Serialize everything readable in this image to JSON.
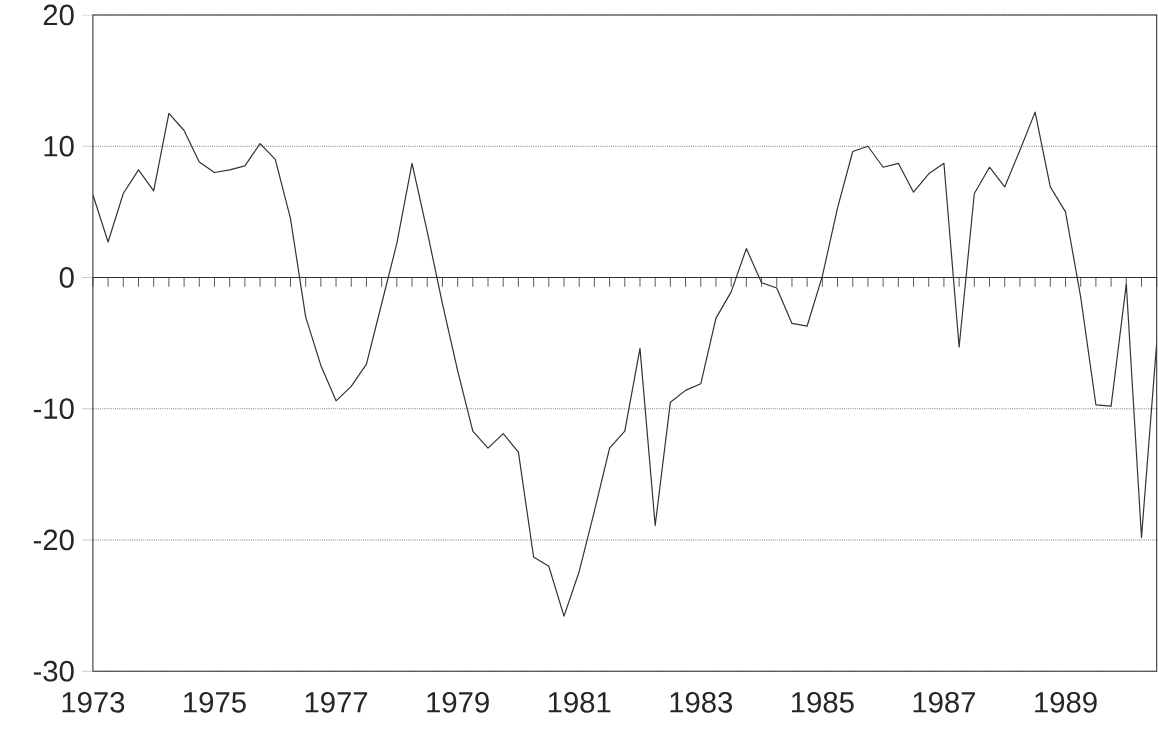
{
  "chart_data": {
    "type": "line",
    "x": [
      1973,
      1973.25,
      1973.5,
      1973.75,
      1974,
      1974.25,
      1974.5,
      1974.75,
      1975,
      1975.25,
      1975.5,
      1975.75,
      1976,
      1976.25,
      1976.5,
      1976.75,
      1977,
      1977.25,
      1977.5,
      1977.75,
      1978,
      1978.25,
      1978.5,
      1978.75,
      1979,
      1979.25,
      1979.5,
      1979.75,
      1980,
      1980.25,
      1980.5,
      1980.75,
      1981,
      1981.25,
      1981.5,
      1981.75,
      1982,
      1982.25,
      1982.5,
      1982.75,
      1983,
      1983.25,
      1983.5,
      1983.75,
      1984,
      1984.25,
      1984.5,
      1984.75,
      1985,
      1985.25,
      1985.5,
      1985.75,
      1986,
      1986.25,
      1986.5,
      1986.75,
      1987,
      1987.25,
      1987.5,
      1987.75,
      1988,
      1988.25,
      1988.5,
      1988.75,
      1989,
      1989.25,
      1989.5,
      1989.75,
      1990,
      1990.25,
      1990.5
    ],
    "series": [
      {
        "color": "#333333",
        "values": [
          6.3,
          2.7,
          6.4,
          8.2,
          6.6,
          12.5,
          11.2,
          8.8,
          8.0,
          8.2,
          8.5,
          10.2,
          9.0,
          4.5,
          -3.0,
          -6.7,
          -9.4,
          -8.3,
          -6.6,
          -2.0,
          2.6,
          8.7,
          3.5,
          -2.0,
          -7.1,
          -11.7,
          -13.0,
          -11.9,
          -13.3,
          -21.3,
          -22.0,
          -25.8,
          -22.4,
          -17.8,
          -13.0,
          -11.7,
          -5.4,
          -18.9,
          -9.5,
          -8.6,
          -8.1,
          -3.1,
          -1.1,
          2.2,
          -0.4,
          -0.8,
          -3.5,
          -3.7,
          0.1,
          5.3,
          9.6,
          10.0,
          8.4,
          8.7,
          6.5,
          7.9,
          8.7,
          -5.3,
          6.4,
          8.4,
          6.9,
          9.7,
          12.6,
          6.9,
          5.0,
          -1.5,
          -9.7,
          -9.8,
          -0.5,
          -19.8,
          -5.0
        ]
      }
    ],
    "xlim": [
      1973,
      1990.5
    ],
    "ylim": [
      -30,
      20
    ],
    "xticks": [
      1973,
      1975,
      1977,
      1979,
      1981,
      1983,
      1985,
      1987,
      1989
    ],
    "yticks": [
      -30,
      -20,
      -10,
      0,
      10,
      20
    ],
    "grid": "y",
    "line_style": "solid",
    "marker": "none",
    "ref_lines": [
      {
        "axis": "y",
        "value": 0,
        "line_style": "solid"
      }
    ]
  }
}
